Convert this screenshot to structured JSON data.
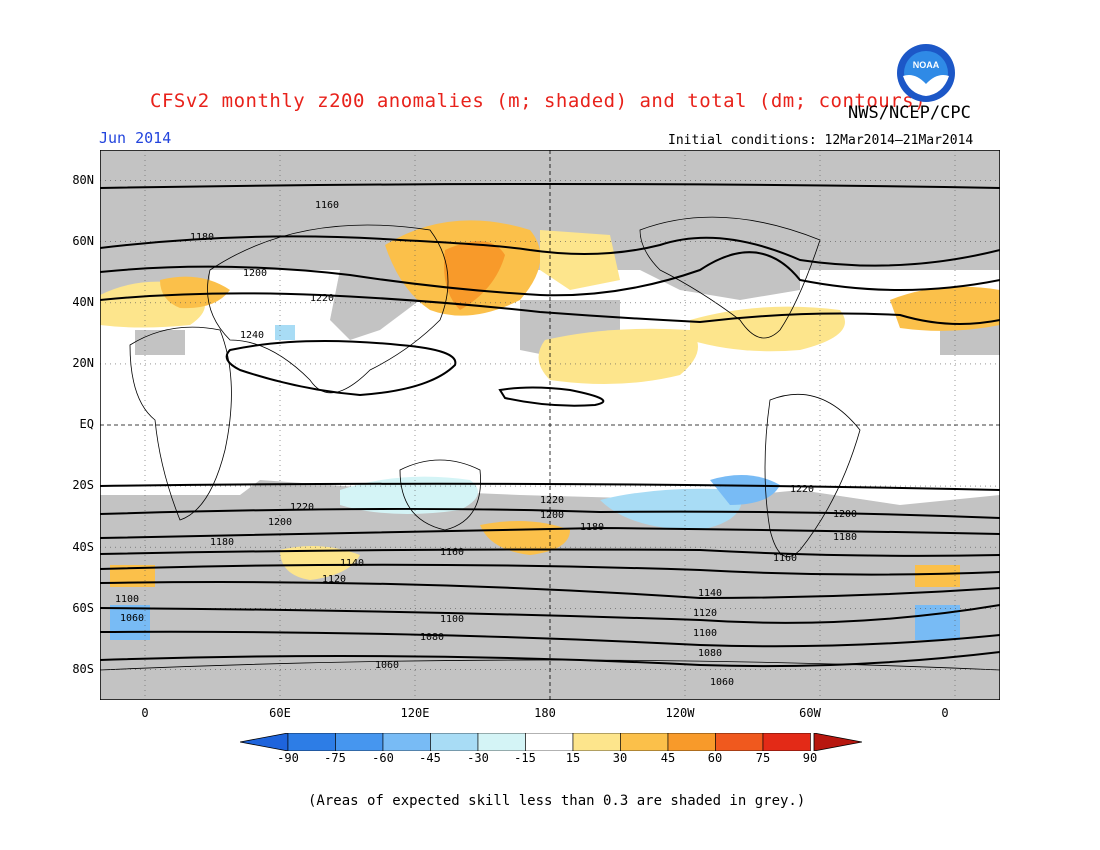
{
  "header": {
    "title": "CFSv2 monthly z200 anomalies (m; shaded) and total (dm; contours)",
    "agency": "NWS/NCEP/CPC",
    "month": "Jun 2014",
    "initial_conditions": "Initial conditions: 12Mar2014–21Mar2014"
  },
  "logo": {
    "text": "NOAA",
    "icon": "noaa-logo-icon",
    "colors": {
      "outer": "#1c57c7",
      "inner": "#2f8ae6",
      "bird": "#ffffff"
    }
  },
  "map": {
    "projection": "cylindrical",
    "lon_range": [
      -20,
      380
    ],
    "lat_range": [
      -90,
      90
    ],
    "lat_labels": [
      "80N",
      "60N",
      "40N",
      "20N",
      "EQ",
      "20S",
      "40S",
      "60S",
      "80S"
    ],
    "lon_labels": [
      "0",
      "60E",
      "120E",
      "180",
      "120W",
      "60W",
      "0"
    ],
    "grey_meaning": "skill < 0.3",
    "contours": [
      {
        "label": "1160",
        "level": 1160
      },
      {
        "label": "1180",
        "level": 1180
      },
      {
        "label": "1200",
        "level": 1200
      },
      {
        "label": "1220",
        "level": 1220
      },
      {
        "label": "1240",
        "level": 1240
      },
      {
        "label": "1140",
        "level": 1140
      },
      {
        "label": "1120",
        "level": 1120
      },
      {
        "label": "1100",
        "level": 1100
      },
      {
        "label": "1080",
        "level": 1080
      },
      {
        "label": "1060",
        "level": 1060
      }
    ]
  },
  "colorbar": {
    "labels": [
      "-90",
      "-75",
      "-60",
      "-45",
      "-30",
      "-15",
      "15",
      "30",
      "45",
      "60",
      "75",
      "90"
    ],
    "colors": [
      "#1e64dc",
      "#2d7de6",
      "#4696ef",
      "#78bbf5",
      "#a8dcf5",
      "#d4f4f6",
      "#ffffff",
      "#fde58c",
      "#fbc04a",
      "#f89a2a",
      "#f0591e",
      "#e32a17",
      "#b7170f"
    ]
  },
  "footnote": "(Areas of expected skill less than 0.3 are shaded in grey.)"
}
